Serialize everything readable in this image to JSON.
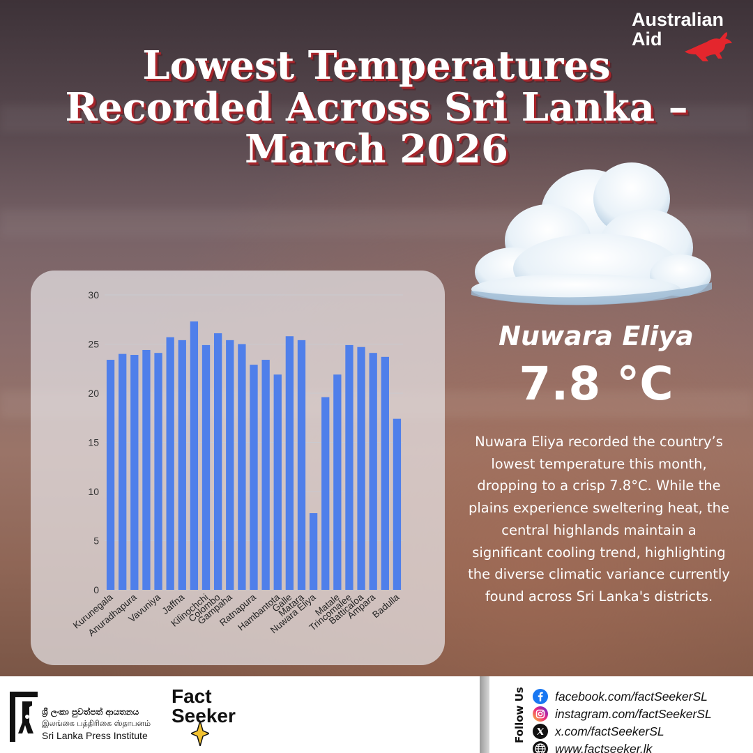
{
  "title": {
    "line1": "Lowest Temperatures",
    "line2": "Recorded Across Sri Lanka –",
    "line3": "March 2026"
  },
  "brand": {
    "aid_line1": "Australian",
    "aid_line2": "Aid",
    "kangaroo_color": "#e4262d"
  },
  "highlight": {
    "city": "Nuwara Eliya",
    "temperature": "7.8 °C",
    "description": "Nuwara Eliya recorded the country’s lowest temperature this month, dropping to a crisp 7.8°C. While the plains experience sweltering heat, the central highlands maintain a significant cooling trend, highlighting the diverse climatic variance currently found across Sri Lanka's districts."
  },
  "chart_data": {
    "type": "bar",
    "categories": [
      "Kurunegala",
      "",
      "Anuradhapura",
      "",
      "Vavuniya",
      "",
      "Jaffna",
      "",
      "Kilinochchi",
      "Colombo",
      "Gampaha",
      "",
      "Ratnapura",
      "",
      "Hambantota",
      "Galle",
      "Matara",
      "Nuwara Eliya",
      "",
      "Matale",
      "Trincomalee",
      "Batticaloa",
      "Ampara",
      "",
      "Badulla"
    ],
    "values": [
      23.4,
      24.0,
      23.9,
      24.4,
      24.1,
      25.7,
      25.4,
      27.3,
      24.9,
      26.1,
      25.4,
      25.0,
      22.9,
      23.4,
      21.9,
      25.8,
      25.4,
      7.8,
      19.6,
      21.9,
      24.9,
      24.7,
      24.1,
      23.7,
      17.4
    ],
    "ylim": [
      0,
      30
    ],
    "yticks": [
      0,
      5,
      10,
      15,
      20,
      25,
      30
    ],
    "grid": true,
    "legend": "none",
    "bar_color": "#4f7fea"
  },
  "footer": {
    "slpi_line1": "ශ්‍රී ලංකා පුවත්පත් ආයතනය",
    "slpi_line2": "இலங்கை பத்திரிகை ஸ்தாபனம்",
    "slpi_line3": "Sri Lanka Press Institute",
    "fs_line1": "Fact",
    "fs_line2": "Seeker",
    "follow_label": "Follow Us",
    "social": {
      "facebook": "facebook.com/factSeekerSL",
      "instagram": "instagram.com/factSeekerSL",
      "x": "x.com/factSeekerSL",
      "web": "www.factseeker.lk"
    }
  }
}
